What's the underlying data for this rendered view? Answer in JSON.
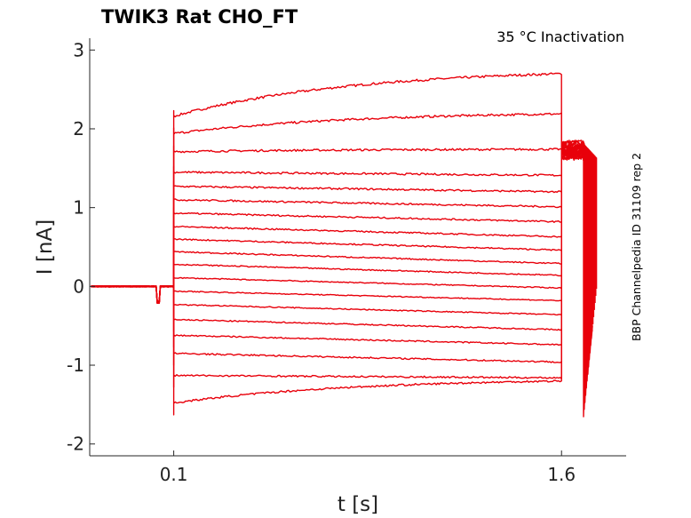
{
  "chart_data": {
    "type": "line",
    "title": "TWIK3  Rat  CHO_FT",
    "annotation": "35 °C  Inactivation",
    "side_label": "BBP Channelpedia ID 31109 rep 2",
    "xlabel": "t [s]",
    "ylabel": "I [nA]",
    "xlim": [
      -0.225,
      1.85
    ],
    "ylim": [
      -2.15,
      3.15
    ],
    "x_ticks": [
      {
        "value": 0.1,
        "label": "0.1"
      },
      {
        "value": 1.6,
        "label": "1.6"
      }
    ],
    "y_ticks": [
      {
        "value": 3,
        "label": "3"
      },
      {
        "value": 2,
        "label": "2"
      },
      {
        "value": 1,
        "label": "1"
      },
      {
        "value": 0,
        "label": "0"
      },
      {
        "value": -1,
        "label": "-1"
      },
      {
        "value": -2,
        "label": "-2"
      }
    ],
    "grid": false,
    "series_color": "#e8000b",
    "protocol": {
      "pulse_start": 0.1,
      "pulse_end": 1.6,
      "tail_start": 1.6,
      "tail_end": 1.72
    },
    "series": [
      {
        "start": 2.16,
        "end": 2.7,
        "tail": 1.83,
        "tail_end_value": 0.08
      },
      {
        "start": 1.94,
        "end": 2.19,
        "tail": 1.81,
        "tail_end_value": 0.06
      },
      {
        "start": 1.71,
        "end": 1.74,
        "tail": 1.79,
        "tail_end_value": 0.05
      },
      {
        "start": 1.45,
        "end": 1.41,
        "tail": 1.78,
        "tail_end_value": 0.03
      },
      {
        "start": 1.27,
        "end": 1.2,
        "tail": 1.77,
        "tail_end_value": 0.02
      },
      {
        "start": 1.1,
        "end": 1.01,
        "tail": 1.76,
        "tail_end_value": 0.0
      },
      {
        "start": 0.93,
        "end": 0.82,
        "tail": 1.75,
        "tail_end_value": -0.02
      },
      {
        "start": 0.76,
        "end": 0.63,
        "tail": 1.74,
        "tail_end_value": -0.04
      },
      {
        "start": 0.6,
        "end": 0.46,
        "tail": 1.73,
        "tail_end_value": -0.06
      },
      {
        "start": 0.44,
        "end": 0.29,
        "tail": 1.72,
        "tail_end_value": -0.08
      },
      {
        "start": 0.28,
        "end": 0.14,
        "tail": 1.71,
        "tail_end_value": -0.1
      },
      {
        "start": 0.11,
        "end": -0.02,
        "tail": 1.7,
        "tail_end_value": -0.12
      },
      {
        "start": -0.06,
        "end": -0.18,
        "tail": 1.69,
        "tail_end_value": -0.14
      },
      {
        "start": -0.23,
        "end": -0.36,
        "tail": 1.68,
        "tail_end_value": -0.16
      },
      {
        "start": -0.42,
        "end": -0.55,
        "tail": 1.67,
        "tail_end_value": -0.18
      },
      {
        "start": -0.62,
        "end": -0.74,
        "tail": 1.66,
        "tail_end_value": -0.2
      },
      {
        "start": -0.85,
        "end": -0.96,
        "tail": 1.65,
        "tail_end_value": -0.22
      },
      {
        "start": -1.13,
        "end": -1.16,
        "tail": 1.64,
        "tail_end_value": -0.24
      },
      {
        "start": -1.48,
        "end": -1.2,
        "tail": 1.63,
        "tail_end_value": -0.26
      }
    ]
  }
}
